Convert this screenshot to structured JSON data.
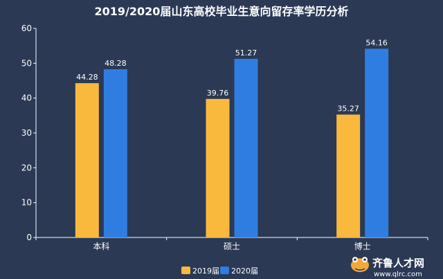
{
  "chart_data": {
    "type": "bar",
    "title": "2019/2020届山东高校毕业生意向留存率学历分析",
    "categories": [
      "本科",
      "硕士",
      "博士"
    ],
    "series": [
      {
        "name": "2019届",
        "values": [
          44.28,
          39.76,
          35.27
        ],
        "color": "#f9b93c"
      },
      {
        "name": "2020届",
        "values": [
          48.28,
          51.27,
          54.16
        ],
        "color": "#2f7de1"
      }
    ],
    "ylim": [
      0,
      60
    ],
    "yticks": [
      0,
      10,
      20,
      30,
      40,
      50,
      60
    ],
    "xlabel": "",
    "ylabel": "",
    "grid": false,
    "legend_position": "bottom-center"
  },
  "watermark": {
    "brand": "齐鲁人才网",
    "url": "www.qlrc.com",
    "icon": "frog-logo-icon"
  },
  "colors": {
    "background": "#2b3955",
    "axis": "#ffffff"
  }
}
